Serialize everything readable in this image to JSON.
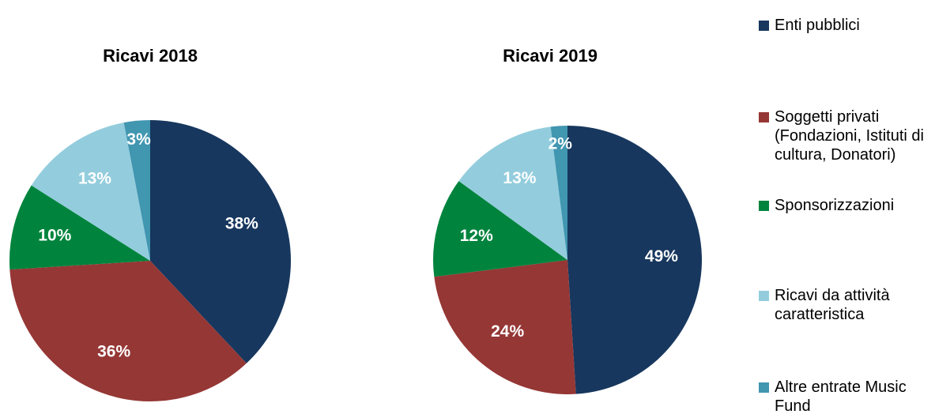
{
  "legend": {
    "categories": [
      "Enti pubblici",
      "Soggetti privati (Fondazioni, Istituti di cultura, Donatori)",
      "Sponsorizzazioni",
      "Ricavi da attività caratteristica",
      "Altre entrate Music Fund"
    ],
    "colors": [
      "#17375e",
      "#953735",
      "#00843d",
      "#93cddd",
      "#4196b0"
    ]
  },
  "chart_data": [
    {
      "type": "pie",
      "title": "Ricavi 2018",
      "values": [
        38,
        36,
        10,
        13,
        3
      ],
      "value_labels": [
        "38%",
        "36%",
        "10%",
        "13%",
        "3%"
      ]
    },
    {
      "type": "pie",
      "title": "Ricavi 2019",
      "values": [
        49,
        24,
        12,
        13,
        2
      ],
      "value_labels": [
        "49%",
        "24%",
        "12%",
        "13%",
        "2%"
      ]
    }
  ]
}
